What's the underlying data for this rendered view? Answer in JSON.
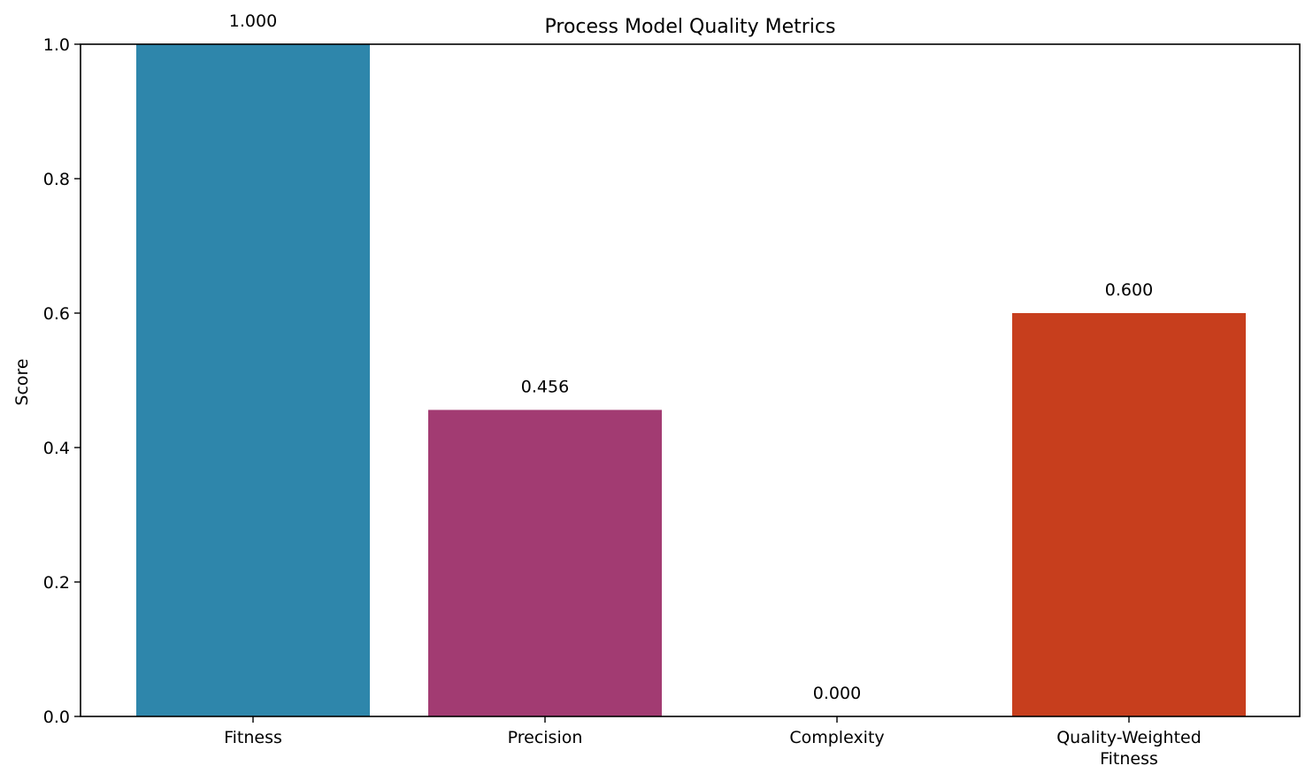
{
  "chart_data": {
    "type": "bar",
    "title": "Process Model Quality Metrics",
    "xlabel": "",
    "ylabel": "Score",
    "ylim": [
      0,
      1.0
    ],
    "yticks": [
      "0.0",
      "0.2",
      "0.4",
      "0.6",
      "0.8",
      "1.0"
    ],
    "categories": [
      [
        "Fitness"
      ],
      [
        "Precision"
      ],
      [
        "Complexity"
      ],
      [
        "Quality-Weighted",
        "Fitness"
      ]
    ],
    "values": [
      1.0,
      0.456,
      0.0,
      0.6
    ],
    "value_labels": [
      "1.000",
      "0.456",
      "0.000",
      "0.600"
    ],
    "colors": [
      "#2e86ab",
      "#a23b72",
      "#f18f01",
      "#c73e1d"
    ],
    "grid": false,
    "legend": "none"
  }
}
